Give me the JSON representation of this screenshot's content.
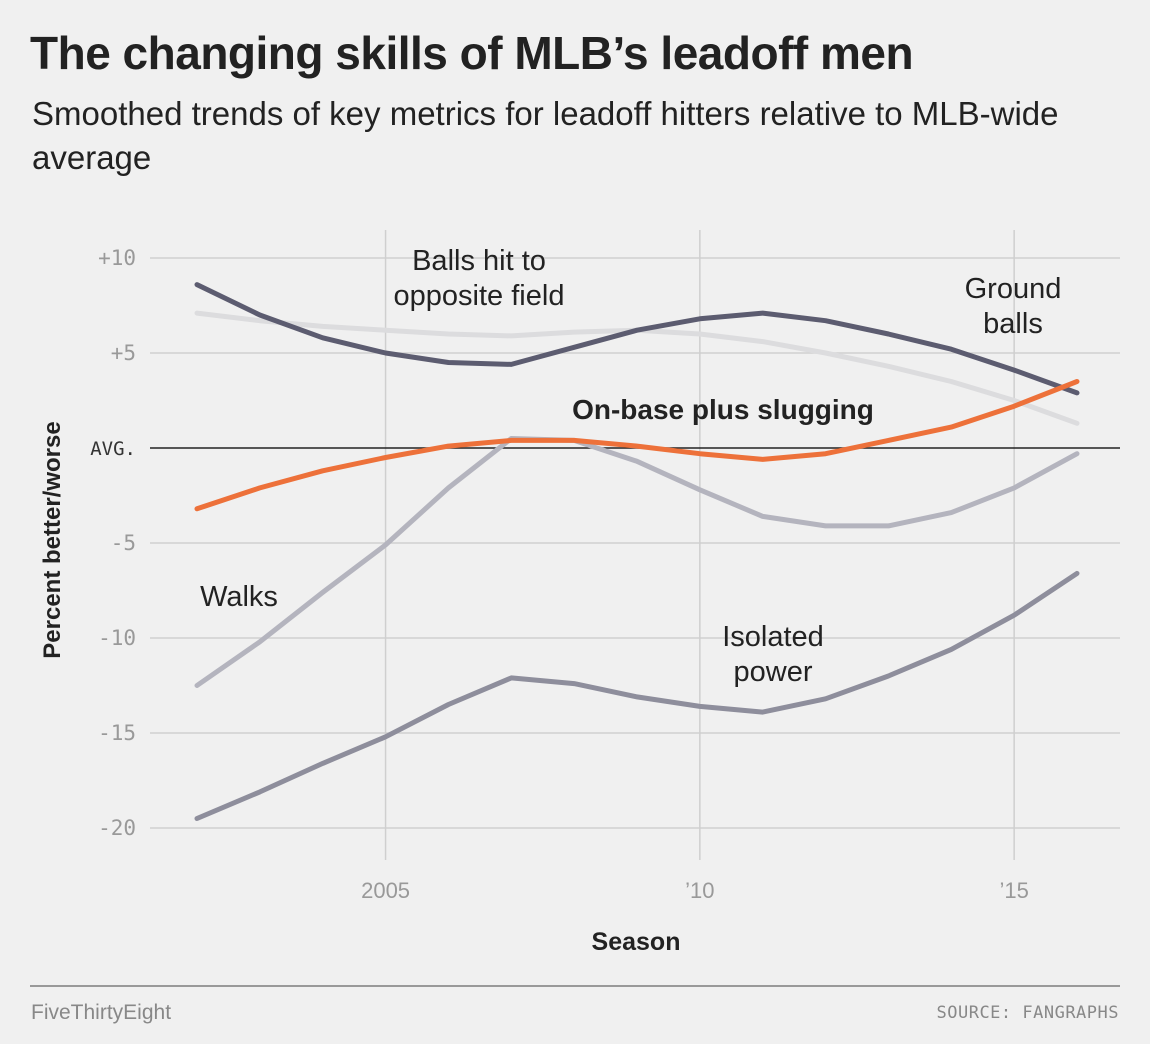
{
  "header": {
    "title": "The changing skills of MLB’s leadoff men",
    "subtitle": "Smoothed trends of key metrics for leadoff hitters relative to MLB-wide average"
  },
  "footer": {
    "brand": "FiveThirtyEight",
    "source": "SOURCE: FANGRAPHS"
  },
  "chart_data": {
    "type": "line",
    "xlabel": "Season",
    "ylabel": "Percent better/worse",
    "xlim": [
      2001.5,
      2016.9
    ],
    "ylim": [
      -22,
      11
    ],
    "grid": true,
    "x_ticks": [
      {
        "value": 2005,
        "label": "2005"
      },
      {
        "value": 2010,
        "label": "’10"
      },
      {
        "value": 2015,
        "label": "’15"
      }
    ],
    "y_ticks": [
      {
        "value": 10,
        "label": "+10"
      },
      {
        "value": 5,
        "label": "+5"
      },
      {
        "value": 0,
        "label": "AVG."
      },
      {
        "value": -5,
        "label": "-5"
      },
      {
        "value": -10,
        "label": "-10"
      },
      {
        "value": -15,
        "label": "-15"
      },
      {
        "value": -20,
        "label": "-20"
      }
    ],
    "x": [
      2002,
      2003,
      2004,
      2005,
      2006,
      2007,
      2008,
      2009,
      2010,
      2011,
      2012,
      2013,
      2014,
      2015,
      2016
    ],
    "series": [
      {
        "name": "Balls hit to opposite field",
        "color": "#dcdcde",
        "values": [
          7.1,
          6.7,
          6.4,
          6.2,
          6.0,
          5.9,
          6.1,
          6.2,
          6.0,
          5.6,
          5.0,
          4.3,
          3.5,
          2.5,
          1.3
        ]
      },
      {
        "name": "Ground balls",
        "color": "#5c5c70",
        "values": [
          8.6,
          7.0,
          5.8,
          5.0,
          4.5,
          4.4,
          5.3,
          6.2,
          6.8,
          7.1,
          6.7,
          6.0,
          5.2,
          4.1,
          2.9
        ]
      },
      {
        "name": "Walks",
        "color": "#b4b4be",
        "values": [
          -12.5,
          -10.2,
          -7.6,
          -5.1,
          -2.1,
          0.5,
          0.4,
          -0.7,
          -2.2,
          -3.6,
          -4.1,
          -4.1,
          -3.4,
          -2.1,
          -0.3
        ]
      },
      {
        "name": "Isolated power",
        "color": "#8e8e9c",
        "values": [
          -19.5,
          -18.1,
          -16.6,
          -15.2,
          -13.5,
          -12.1,
          -12.4,
          -13.1,
          -13.6,
          -13.9,
          -13.2,
          -12.0,
          -10.6,
          -8.8,
          -6.6
        ]
      },
      {
        "name": "On-base plus slugging",
        "color": "#ed713a",
        "values": [
          -3.2,
          -2.1,
          -1.2,
          -0.5,
          0.1,
          0.4,
          0.4,
          0.1,
          -0.3,
          -0.6,
          -0.3,
          0.4,
          1.1,
          2.2,
          3.5
        ]
      }
    ]
  }
}
